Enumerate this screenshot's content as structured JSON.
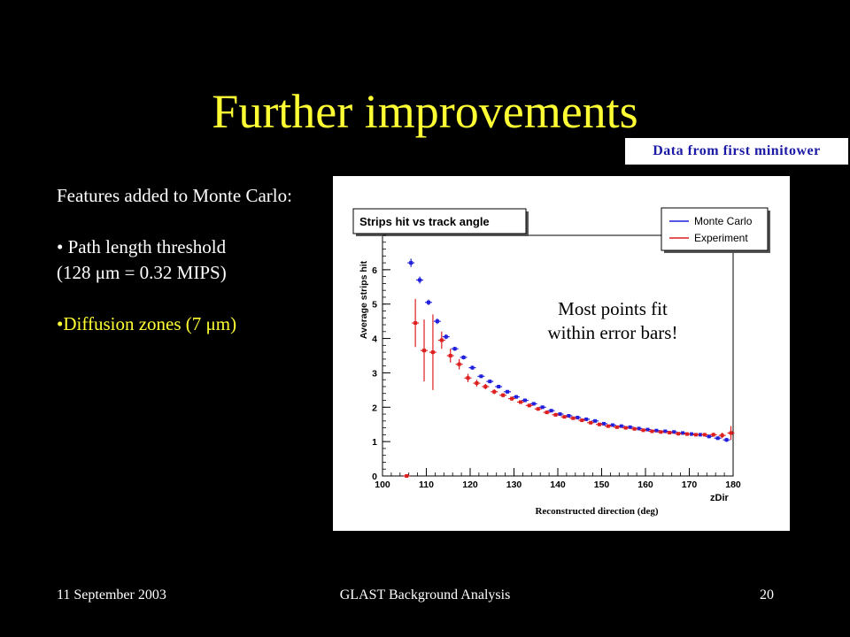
{
  "slide": {
    "title": "Further improvements",
    "note": "Data from first minitower",
    "features": {
      "heading": "Features added to Monte Carlo:",
      "bullet1_line1": "• Path length threshold",
      "bullet1_line2": "(128 μm = 0.32 MIPS)",
      "bullet2": "•Diffusion zones (7 μm)"
    },
    "callout_line1": "Most points fit",
    "callout_line2": "within error bars!",
    "footer": {
      "date": "11 September 2003",
      "center": "GLAST Background Analysis",
      "page": "20"
    }
  },
  "chart_data": {
    "type": "scatter",
    "title": "Strips hit vs track angle",
    "xlabel": "zDir",
    "xlabel_caption": "Reconstructed direction (deg)",
    "ylabel": "Average strips hit",
    "xlim": [
      100,
      180
    ],
    "ylim": [
      0,
      7
    ],
    "xticks": [
      100,
      110,
      120,
      130,
      140,
      150,
      160,
      170,
      180
    ],
    "yticks": [
      0,
      1,
      2,
      3,
      4,
      5,
      6
    ],
    "legend_position": "top-right",
    "grid": false,
    "series": [
      {
        "name": "Monte Carlo",
        "color": "#1f1fdd",
        "x": [
          106.5,
          108.5,
          110.5,
          112.5,
          114.5,
          116.5,
          118.5,
          120.5,
          122.5,
          124.5,
          126.5,
          128.5,
          130.5,
          132.5,
          134.5,
          136.5,
          138.5,
          140.5,
          142.5,
          144.5,
          146.5,
          148.5,
          150.5,
          152.5,
          154.5,
          156.5,
          158.5,
          160.5,
          162.5,
          164.5,
          166.5,
          168.5,
          170.5,
          172.5,
          174.5,
          176.5,
          178.5
        ],
        "y": [
          6.2,
          5.7,
          5.05,
          4.5,
          4.05,
          3.7,
          3.45,
          3.15,
          2.9,
          2.75,
          2.6,
          2.45,
          2.3,
          2.2,
          2.1,
          2.0,
          1.9,
          1.8,
          1.75,
          1.7,
          1.65,
          1.6,
          1.52,
          1.48,
          1.45,
          1.42,
          1.38,
          1.35,
          1.32,
          1.3,
          1.28,
          1.25,
          1.22,
          1.2,
          1.15,
          1.1,
          1.05
        ],
        "err": [
          0.12,
          0.1,
          0.08,
          0.08,
          0.07,
          0.06,
          0.06,
          0.06,
          0.05,
          0.05,
          0.05,
          0.05,
          0.05,
          0.05,
          0.04,
          0.04,
          0.04,
          0.04,
          0.04,
          0.04,
          0.04,
          0.04,
          0.04,
          0.04,
          0.04,
          0.04,
          0.04,
          0.04,
          0.04,
          0.04,
          0.04,
          0.04,
          0.04,
          0.04,
          0.05,
          0.05,
          0.06
        ]
      },
      {
        "name": "Experiment",
        "color": "#dd1f1f",
        "x": [
          105.5,
          107.5,
          109.5,
          111.5,
          113.5,
          115.5,
          117.5,
          119.5,
          121.5,
          123.5,
          125.5,
          127.5,
          129.5,
          131.5,
          133.5,
          135.5,
          137.5,
          139.5,
          141.5,
          143.5,
          145.5,
          147.5,
          149.5,
          151.5,
          153.5,
          155.5,
          157.5,
          159.5,
          161.5,
          163.5,
          165.5,
          167.5,
          169.5,
          171.5,
          173.5,
          175.5,
          177.5,
          179.5
        ],
        "y": [
          0.0,
          4.45,
          3.65,
          3.6,
          3.95,
          3.5,
          3.25,
          2.85,
          2.7,
          2.6,
          2.45,
          2.35,
          2.25,
          2.15,
          2.05,
          1.95,
          1.85,
          1.78,
          1.72,
          1.68,
          1.62,
          1.55,
          1.5,
          1.45,
          1.42,
          1.4,
          1.37,
          1.33,
          1.3,
          1.28,
          1.26,
          1.23,
          1.22,
          1.2,
          1.2,
          1.2,
          1.18,
          1.25
        ],
        "err": [
          0.02,
          0.7,
          0.9,
          1.1,
          0.25,
          0.2,
          0.15,
          0.12,
          0.1,
          0.08,
          0.07,
          0.06,
          0.06,
          0.05,
          0.05,
          0.05,
          0.05,
          0.05,
          0.04,
          0.04,
          0.04,
          0.04,
          0.04,
          0.04,
          0.04,
          0.04,
          0.04,
          0.04,
          0.04,
          0.04,
          0.04,
          0.04,
          0.04,
          0.04,
          0.05,
          0.06,
          0.08,
          0.2
        ]
      }
    ]
  }
}
